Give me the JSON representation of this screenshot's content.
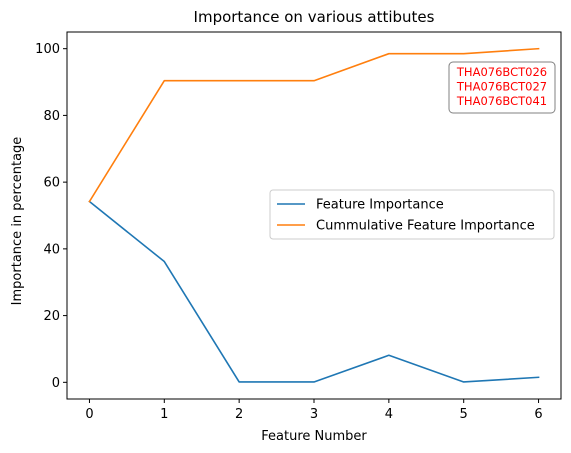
{
  "chart_data": {
    "type": "line",
    "title": "Importance on various attibutes",
    "xlabel": "Feature Number",
    "ylabel": "Importance in percentage",
    "x": [
      0,
      1,
      2,
      3,
      4,
      5,
      6
    ],
    "xticks": [
      "0",
      "1",
      "2",
      "3",
      "4",
      "5",
      "6"
    ],
    "yticks": [
      "0",
      "20",
      "40",
      "60",
      "80",
      "100"
    ],
    "xlim": [
      -0.3,
      6.3
    ],
    "ylim": [
      -5,
      105
    ],
    "grid": false,
    "legend_position": "center-right",
    "series": [
      {
        "name": "Feature Importance",
        "color": "#1f77b4",
        "values": [
          54.2,
          36.2,
          0.1,
          0.1,
          8.1,
          0.1,
          1.5
        ]
      },
      {
        "name": "Cummulative Feature Importance",
        "color": "#ff7f0e",
        "values": [
          54.2,
          90.4,
          90.4,
          90.4,
          98.5,
          98.5,
          100.0
        ]
      }
    ],
    "annotation": {
      "lines": [
        "THA076BCT026",
        "THA076BCT027",
        "THA076BCT041"
      ],
      "color": "#ff0000"
    }
  }
}
